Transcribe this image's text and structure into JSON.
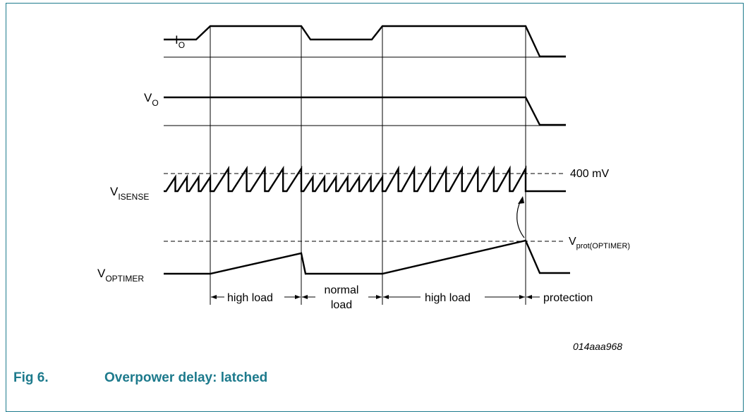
{
  "figure": {
    "number": "Fig 6.",
    "title": "Overpower delay: latched",
    "code": "014aaa968"
  },
  "signals": {
    "io": {
      "base": "I",
      "sub": "O"
    },
    "vo": {
      "base": "V",
      "sub": "O"
    },
    "visense": {
      "base": "V",
      "sub": "ISENSE"
    },
    "voptimer": {
      "base": "V",
      "sub": "OPTIMER"
    }
  },
  "levels": {
    "threshold_400": "400 mV",
    "vprot": {
      "base": "V",
      "sub": "prot(OPTIMER)"
    }
  },
  "intervals": {
    "high_load_1": "high load",
    "normal_load_line1": "normal",
    "normal_load_line2": "load",
    "high_load_2": "high load",
    "protection": "protection"
  },
  "colors": {
    "accent": "#1d7a8c",
    "trace": "#000000"
  }
}
